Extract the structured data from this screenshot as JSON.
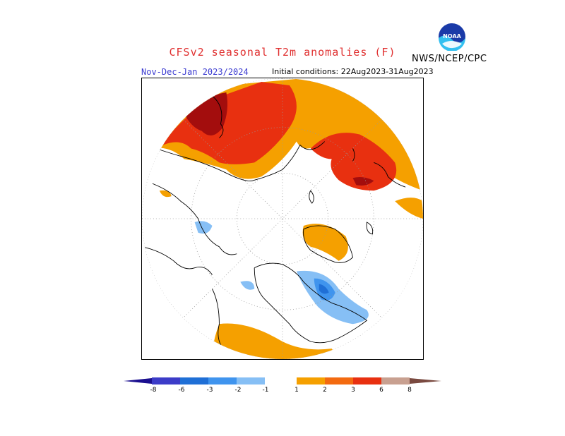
{
  "header": {
    "title": "CFSv2 seasonal T2m anomalies (F)",
    "organization": "NWS/NCEP/CPC",
    "season": "Nov-Dec-Jan 2023/2024",
    "initial_conditions": "Initial conditions: 22Aug2023-31Aug2023",
    "logo_text": "NOAA"
  },
  "colorbar": {
    "labels": [
      "-8",
      "-6",
      "-3",
      "-2",
      "-1",
      "1",
      "2",
      "3",
      "6",
      "8"
    ],
    "colors": {
      "lt_minus8": "#1a0f8f",
      "m8_m6": "#3c3cc8",
      "m6_m3": "#1f6fd6",
      "m3_m2": "#3f94ee",
      "m2_m1": "#86bff5",
      "neutral": "#ffffff",
      "p1_p2": "#f5a000",
      "p2_p3": "#f36a10",
      "p3_p6": "#e83010",
      "p6_p8": "#a30d0d",
      "p8_plus": "#c8a090",
      "gt_plus8": "#7a4a40"
    }
  },
  "map": {
    "projection": "north-polar-stereographic",
    "colors": {
      "warm1": "#f5a000",
      "warm2": "#f36a10",
      "warm3": "#e83010",
      "warm4": "#a30d0d",
      "cool1": "#86bff5",
      "cool2": "#3f94ee",
      "cool3": "#1f6fd6"
    }
  }
}
